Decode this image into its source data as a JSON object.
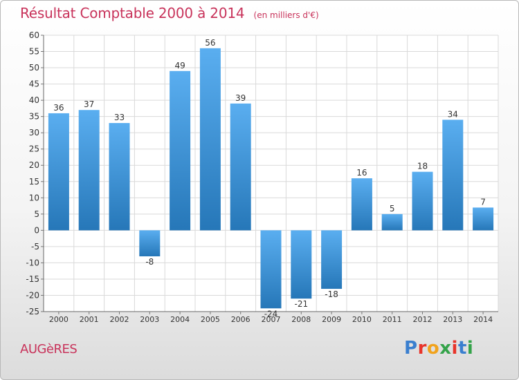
{
  "header": {
    "title": "Résultat Comptable 2000 à 2014",
    "unit": "(en milliers d'€)"
  },
  "footer": {
    "commune": "AUGèRES",
    "logo": "Proxiti",
    "logo_colors": [
      "#3a7fcf",
      "#e8342a",
      "#f1a31d",
      "#34a34a",
      "#e8342a",
      "#3a7fcf",
      "#34a34a"
    ]
  },
  "colors": {
    "title": "#c8325a",
    "bar_light": "#5aaef0",
    "bar_dark": "#2677b8",
    "grid": "#d9d9d9"
  },
  "chart_data": {
    "type": "bar",
    "title": "Résultat Comptable 2000 à 2014",
    "subtitle": "(en milliers d'€)",
    "categories": [
      "2000",
      "2001",
      "2002",
      "2003",
      "2004",
      "2005",
      "2006",
      "2007",
      "2008",
      "2009",
      "2010",
      "2011",
      "2012",
      "2013",
      "2014"
    ],
    "values": [
      36,
      37,
      33,
      -8,
      49,
      56,
      39,
      -24,
      -21,
      -18,
      16,
      5,
      18,
      34,
      7
    ],
    "value_labels": [
      "36",
      "37",
      "33",
      "-8",
      "49",
      "56",
      "39",
      "-24",
      "-21",
      "-18",
      "16",
      "5",
      "18",
      "34",
      "7"
    ],
    "ylim": [
      -25,
      60
    ],
    "yticks": [
      "60",
      "55",
      "50",
      "45",
      "40",
      "35",
      "30",
      "25",
      "20",
      "15",
      "10",
      "5",
      "0",
      "-5",
      "-10",
      "-15",
      "-20",
      "-25"
    ],
    "grid": true,
    "legend": "none"
  }
}
